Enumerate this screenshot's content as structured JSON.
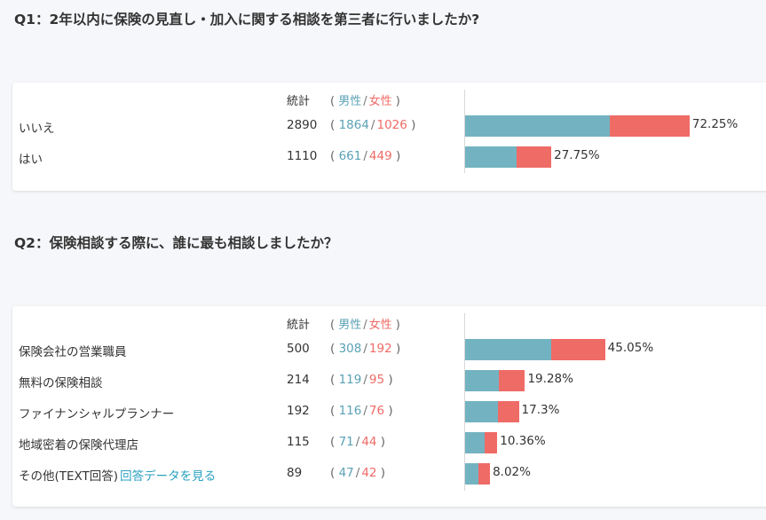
{
  "header_labels": {
    "count": "統計",
    "male": "男性",
    "female": "女性"
  },
  "questions": [
    {
      "title": "Q1：2年以内に保険の見直し・加入に関する相談を第三者に行いましたか?",
      "rows": [
        {
          "label": "いいえ",
          "link": "",
          "count": "2890",
          "male": "1864",
          "female": "1026",
          "percent": "72.25%",
          "pct_value": 72.25
        },
        {
          "label": "はい",
          "link": "",
          "count": "1110",
          "male": "661",
          "female": "449",
          "percent": "27.75%",
          "pct_value": 27.75
        }
      ]
    },
    {
      "title": "Q2：保険相談する際に、誰に最も相談しましたか？",
      "rows": [
        {
          "label": "保険会社の営業職員",
          "link": "",
          "count": "500",
          "male": "308",
          "female": "192",
          "percent": "45.05%",
          "pct_value": 45.05
        },
        {
          "label": "無料の保険相談",
          "link": "",
          "count": "214",
          "male": "119",
          "female": "95",
          "percent": "19.28%",
          "pct_value": 19.28
        },
        {
          "label": "ファイナンシャルプランナー",
          "link": "",
          "count": "192",
          "male": "116",
          "female": "76",
          "percent": "17.3%",
          "pct_value": 17.3
        },
        {
          "label": "地域密着の保険代理店",
          "link": "",
          "count": "115",
          "male": "71",
          "female": "44",
          "percent": "10.36%",
          "pct_value": 10.36
        },
        {
          "label": "その他(TEXT回答)",
          "link": "回答データを見る",
          "count": "89",
          "male": "47",
          "female": "42",
          "percent": "8.02%",
          "pct_value": 8.02
        }
      ]
    }
  ],
  "colors": {
    "male": "#73b3c1",
    "female": "#ef6b66"
  },
  "chart_data": [
    {
      "type": "bar",
      "title": "Q1：2年以内に保険の見直し・加入に関する相談を第三者に行いましたか?",
      "categories": [
        "いいえ",
        "はい"
      ],
      "values": [
        72.25,
        27.75
      ],
      "counts": [
        2890,
        1110
      ],
      "series": [
        {
          "name": "男性",
          "values": [
            1864,
            661
          ]
        },
        {
          "name": "女性",
          "values": [
            1026,
            449
          ]
        }
      ],
      "xlabel": "",
      "ylabel": ""
    },
    {
      "type": "bar",
      "title": "Q2：保険相談する際に、誰に最も相談しましたか？",
      "categories": [
        "保険会社の営業職員",
        "無料の保険相談",
        "ファイナンシャルプランナー",
        "地域密着の保険代理店",
        "その他(TEXT回答)"
      ],
      "values": [
        45.05,
        19.28,
        17.3,
        10.36,
        8.02
      ],
      "counts": [
        500,
        214,
        192,
        115,
        89
      ],
      "series": [
        {
          "name": "男性",
          "values": [
            308,
            119,
            116,
            71,
            47
          ]
        },
        {
          "name": "女性",
          "values": [
            192,
            95,
            76,
            44,
            42
          ]
        }
      ],
      "xlabel": "",
      "ylabel": ""
    }
  ]
}
